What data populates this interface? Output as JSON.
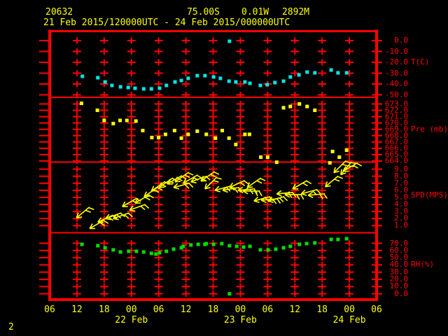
{
  "header": {
    "station_id": "20632",
    "latitude": "75.00S",
    "longitude": "0.01W",
    "elevation": "2892M",
    "period": "21 Feb 2015/120000UTC - 24 Feb 2015/000000UTC"
  },
  "page_number": "2",
  "colors": {
    "background": "#000000",
    "grid": "#ff0000",
    "axis_text": "#ff0000",
    "label_text": "#ffff00",
    "temperature": "#00e6e6",
    "pressure": "#ffff00",
    "wind": "#ffff00",
    "humidity": "#00dd00"
  },
  "chart_data": {
    "type": "scatter",
    "title": "21 Feb 2015/120000UTC - 24 Feb 2015/000000UTC",
    "x_axis": {
      "range_hours": [
        6,
        78
      ],
      "hour_labels": [
        "06",
        "12",
        "18",
        "00",
        "06",
        "12",
        "18",
        "00",
        "06",
        "12",
        "18",
        "00",
        "06"
      ],
      "day_labels": [
        {
          "label": "22 Feb",
          "t": 24
        },
        {
          "label": "23 Feb",
          "t": 48
        },
        {
          "label": "24 Feb",
          "t": 72
        }
      ]
    },
    "panels": [
      {
        "name": "temperature",
        "ylabel": "T(C)",
        "color": "#00e6e6",
        "ytick_labels": [
          "0.0",
          "-10.0",
          "-20.0",
          "-30.0",
          "-40.0",
          "-50.0"
        ],
        "points": [
          {
            "t": 13.2,
            "v": -32.9
          },
          {
            "t": 16.6,
            "v": -34.2
          },
          {
            "t": 18.2,
            "v": -38.1
          },
          {
            "t": 19.7,
            "v": -41.3
          },
          {
            "t": 21.6,
            "v": -42.6
          },
          {
            "t": 23.3,
            "v": -43.2
          },
          {
            "t": 24.8,
            "v": -43.9
          },
          {
            "t": 26.7,
            "v": -44.5
          },
          {
            "t": 28.4,
            "v": -44.5
          },
          {
            "t": 30.2,
            "v": -43.9
          },
          {
            "t": 31.7,
            "v": -41.3
          },
          {
            "t": 33.6,
            "v": -38.1
          },
          {
            "t": 35.0,
            "v": -36.8
          },
          {
            "t": 36.5,
            "v": -34.8
          },
          {
            "t": 38.5,
            "v": -32.3
          },
          {
            "t": 40.2,
            "v": -32.3
          },
          {
            "t": 42.1,
            "v": -33.5
          },
          {
            "t": 43.6,
            "v": -34.8
          },
          {
            "t": 45.5,
            "v": -37.4
          },
          {
            "t": 45.6,
            "v": -0.6
          },
          {
            "t": 47.0,
            "v": -38.1
          },
          {
            "t": 49.0,
            "v": -38.1
          },
          {
            "t": 50.1,
            "v": -39.4
          },
          {
            "t": 52.4,
            "v": -41.3
          },
          {
            "t": 53.9,
            "v": -40.6
          },
          {
            "t": 55.6,
            "v": -38.7
          },
          {
            "t": 57.5,
            "v": -37.4
          },
          {
            "t": 59.0,
            "v": -33.5
          },
          {
            "t": 60.9,
            "v": -31.6
          },
          {
            "t": 62.7,
            "v": -29.0
          },
          {
            "t": 64.4,
            "v": -29.7
          },
          {
            "t": 68.0,
            "v": -27.1
          },
          {
            "t": 69.5,
            "v": -29.7
          },
          {
            "t": 71.4,
            "v": -29.7
          }
        ]
      },
      {
        "name": "pressure",
        "ylabel": "Pre (mb)",
        "color": "#ffff00",
        "ytick_labels": [
          "673.0",
          "672.0",
          "671.0",
          "670.0",
          "669.0",
          "668.0",
          "667.0",
          "666.0",
          "665.0",
          "664.0"
        ],
        "points": [
          {
            "t": 13.0,
            "v": 673.1
          },
          {
            "t": 16.5,
            "v": 672.0
          },
          {
            "t": 18.0,
            "v": 670.4
          },
          {
            "t": 20.0,
            "v": 669.9
          },
          {
            "t": 21.5,
            "v": 670.4
          },
          {
            "t": 23.0,
            "v": 670.4
          },
          {
            "t": 25.0,
            "v": 670.3
          },
          {
            "t": 26.5,
            "v": 668.8
          },
          {
            "t": 28.5,
            "v": 667.7
          },
          {
            "t": 30.0,
            "v": 667.7
          },
          {
            "t": 31.5,
            "v": 668.2
          },
          {
            "t": 33.5,
            "v": 668.8
          },
          {
            "t": 35.0,
            "v": 667.6
          },
          {
            "t": 36.5,
            "v": 668.2
          },
          {
            "t": 38.5,
            "v": 668.7
          },
          {
            "t": 40.5,
            "v": 668.2
          },
          {
            "t": 42.5,
            "v": 667.6
          },
          {
            "t": 44.0,
            "v": 668.8
          },
          {
            "t": 45.5,
            "v": 667.6
          },
          {
            "t": 47.0,
            "v": 666.6
          },
          {
            "t": 49.0,
            "v": 668.2
          },
          {
            "t": 50.0,
            "v": 668.2
          },
          {
            "t": 52.5,
            "v": 664.6
          },
          {
            "t": 54.0,
            "v": 664.6
          },
          {
            "t": 56.0,
            "v": 663.8
          },
          {
            "t": 57.5,
            "v": 672.4
          },
          {
            "t": 59.0,
            "v": 672.6
          },
          {
            "t": 61.0,
            "v": 673.0
          },
          {
            "t": 62.7,
            "v": 672.6
          },
          {
            "t": 64.4,
            "v": 672.0
          },
          {
            "t": 67.7,
            "v": 663.7
          },
          {
            "t": 68.3,
            "v": 665.5
          },
          {
            "t": 69.8,
            "v": 664.6
          },
          {
            "t": 71.4,
            "v": 665.7
          }
        ]
      },
      {
        "name": "wind_speed",
        "ylabel": "SPD(MPS)",
        "color": "#ffff00",
        "ytick_labels": [
          "9.0",
          "8.0",
          "7.0",
          "6.0",
          "5.0",
          "4.0",
          "3.0",
          "2.0",
          "1.0"
        ],
        "marker": "wind-barb",
        "points": [
          {
            "t": 11.9,
            "v": 2.1,
            "dir": 220
          },
          {
            "t": 14.8,
            "v": 0.6,
            "dir": 210
          },
          {
            "t": 16.6,
            "v": 1.5,
            "dir": 205
          },
          {
            "t": 18.3,
            "v": 2.0,
            "dir": 200
          },
          {
            "t": 20.0,
            "v": 2.0,
            "dir": 200
          },
          {
            "t": 22.0,
            "v": 3.7,
            "dir": 210
          },
          {
            "t": 23.6,
            "v": 3.2,
            "dir": 200
          },
          {
            "t": 24.8,
            "v": 4.2,
            "dir": 210
          },
          {
            "t": 26.8,
            "v": 5.1,
            "dir": 215
          },
          {
            "t": 28.4,
            "v": 5.9,
            "dir": 215
          },
          {
            "t": 30.1,
            "v": 6.4,
            "dir": 215
          },
          {
            "t": 31.9,
            "v": 6.9,
            "dir": 210
          },
          {
            "t": 33.3,
            "v": 6.4,
            "dir": 195
          },
          {
            "t": 33.6,
            "v": 7.2,
            "dir": 215
          },
          {
            "t": 35.4,
            "v": 7.0,
            "dir": 210
          },
          {
            "t": 37.1,
            "v": 7.2,
            "dir": 200
          },
          {
            "t": 39.3,
            "v": 7.3,
            "dir": 215
          },
          {
            "t": 40.2,
            "v": 6.2,
            "dir": 225
          },
          {
            "t": 42.4,
            "v": 6.0,
            "dir": 195
          },
          {
            "t": 44.1,
            "v": 6.0,
            "dir": 190
          },
          {
            "t": 45.6,
            "v": 6.4,
            "dir": 205
          },
          {
            "t": 47.5,
            "v": 6.0,
            "dir": 185
          },
          {
            "t": 48.6,
            "v": 5.9,
            "dir": 180
          },
          {
            "t": 49.5,
            "v": 6.4,
            "dir": 215
          },
          {
            "t": 51.0,
            "v": 4.5,
            "dir": 195
          },
          {
            "t": 52.6,
            "v": 4.6,
            "dir": 185
          },
          {
            "t": 54.1,
            "v": 4.5,
            "dir": 195
          },
          {
            "t": 56.0,
            "v": 5.5,
            "dir": 185
          },
          {
            "t": 57.8,
            "v": 5.4,
            "dir": 180
          },
          {
            "t": 59.5,
            "v": 6.2,
            "dir": 210
          },
          {
            "t": 61.4,
            "v": 5.5,
            "dir": 195
          },
          {
            "t": 62.9,
            "v": 5.3,
            "dir": 185
          },
          {
            "t": 66.7,
            "v": 6.5,
            "dir": 220
          },
          {
            "t": 68.6,
            "v": 8.5,
            "dir": 225
          },
          {
            "t": 70.1,
            "v": 8.2,
            "dir": 230
          },
          {
            "t": 70.6,
            "v": 8.7,
            "dir": 210
          }
        ]
      },
      {
        "name": "humidity",
        "ylabel": "RH(%)",
        "color": "#00dd00",
        "ytick_labels": [
          "70.0",
          "60.0",
          "50.0",
          "40.0",
          "30.0",
          "20.0",
          "10.0",
          "0.0"
        ],
        "points": [
          {
            "t": 13.1,
            "v": 68.5
          },
          {
            "t": 16.6,
            "v": 66.6
          },
          {
            "t": 18.2,
            "v": 63.7
          },
          {
            "t": 20.0,
            "v": 60.8
          },
          {
            "t": 21.6,
            "v": 57.9
          },
          {
            "t": 23.4,
            "v": 58.9
          },
          {
            "t": 25.1,
            "v": 58.9
          },
          {
            "t": 26.7,
            "v": 57.9
          },
          {
            "t": 28.4,
            "v": 56.0
          },
          {
            "t": 29.4,
            "v": 55.0
          },
          {
            "t": 30.2,
            "v": 56.9
          },
          {
            "t": 31.7,
            "v": 58.9
          },
          {
            "t": 33.3,
            "v": 61.8
          },
          {
            "t": 35.0,
            "v": 63.7
          },
          {
            "t": 35.4,
            "v": 65.7
          },
          {
            "t": 37.1,
            "v": 67.6
          },
          {
            "t": 38.7,
            "v": 68.5
          },
          {
            "t": 40.2,
            "v": 68.5
          },
          {
            "t": 40.5,
            "v": 69.5
          },
          {
            "t": 42.1,
            "v": 68.5
          },
          {
            "t": 43.9,
            "v": 69.5
          },
          {
            "t": 45.6,
            "v": 66.6
          },
          {
            "t": 45.6,
            "v": 0.0
          },
          {
            "t": 47.2,
            "v": 65.7
          },
          {
            "t": 48.7,
            "v": 64.7
          },
          {
            "t": 50.1,
            "v": 65.7
          },
          {
            "t": 52.4,
            "v": 60.8
          },
          {
            "t": 54.1,
            "v": 60.8
          },
          {
            "t": 55.8,
            "v": 61.8
          },
          {
            "t": 57.5,
            "v": 63.7
          },
          {
            "t": 59.0,
            "v": 65.7
          },
          {
            "t": 61.0,
            "v": 68.5
          },
          {
            "t": 62.6,
            "v": 69.5
          },
          {
            "t": 64.4,
            "v": 70.5
          },
          {
            "t": 68.0,
            "v": 75.3
          },
          {
            "t": 69.5,
            "v": 75.3
          },
          {
            "t": 71.4,
            "v": 76.3
          }
        ]
      }
    ]
  }
}
